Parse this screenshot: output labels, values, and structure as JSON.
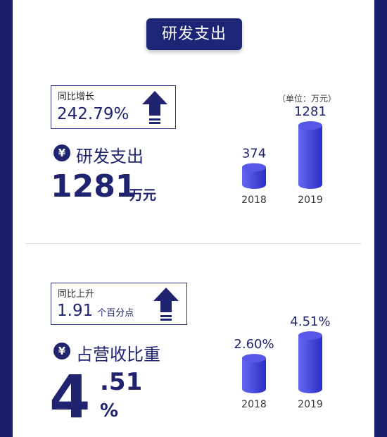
{
  "header": {
    "title": "研发支出"
  },
  "rd_section": {
    "badge_label": "同比增长",
    "badge_value": "242.79%",
    "currency_icon": "¥",
    "title": "研发支出",
    "big_value": "1281",
    "big_unit": "万元",
    "unit_note": "（单位：万元）"
  },
  "ratio_section": {
    "badge_label": "同比上升",
    "badge_value": "1.91",
    "badge_unit": "个百分点",
    "currency_icon": "¥",
    "title": "占营收比重",
    "big_int": "4",
    "big_decimal": ".51",
    "big_percent": "%"
  },
  "colors": {
    "navy": "#1d2576",
    "bar_top": "#5558e8",
    "bar_side_light": "#6468f0",
    "bar_side_dark": "#2b2fc4"
  },
  "chart_data": [
    {
      "type": "bar",
      "categories": [
        "2018",
        "2019"
      ],
      "values": [
        374,
        1281
      ],
      "value_labels": [
        "374",
        "1281"
      ],
      "unit": "万元"
    },
    {
      "type": "bar",
      "categories": [
        "2018",
        "2019"
      ],
      "values": [
        2.6,
        4.51
      ],
      "value_labels": [
        "2.60%",
        "4.51%"
      ],
      "unit": "%"
    }
  ]
}
